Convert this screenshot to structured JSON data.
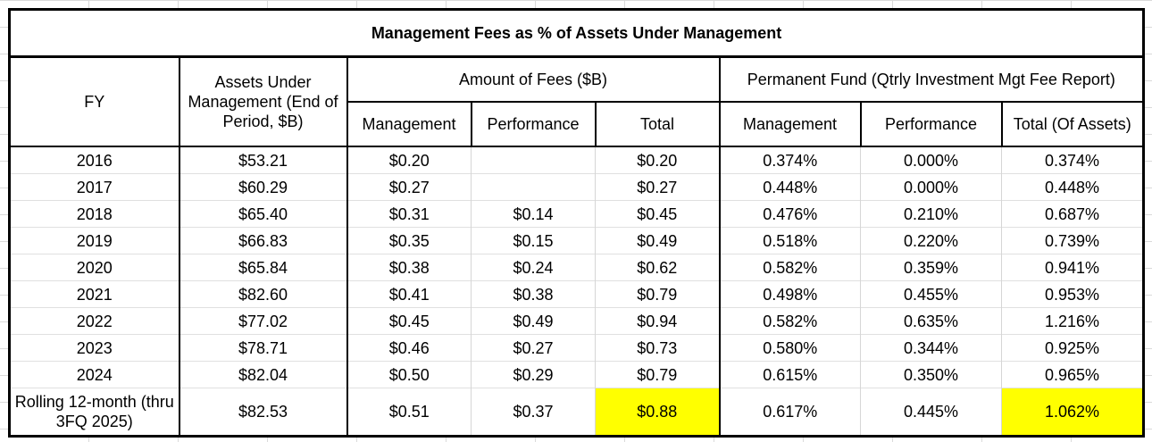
{
  "title": "Management Fees as % of Assets Under Management",
  "headers": {
    "fy": "FY",
    "aum": "Assets Under Management (End of Period, $B)",
    "fees_group": "Amount of Fees ($B)",
    "pf_group": "Permanent Fund (Qtrly Investment Mgt Fee Report)",
    "fees_mgmt": "Management",
    "fees_perf": "Performance",
    "fees_total": "Total",
    "pf_mgmt": "Management",
    "pf_perf": "Performance",
    "pf_total": "Total (Of Assets)"
  },
  "rows": [
    {
      "fy": "2016",
      "aum": "$53.21",
      "mgmt": "$0.20",
      "perf": "",
      "total": "$0.20",
      "pct_mgmt": "0.374%",
      "pct_perf": "0.000%",
      "pct_total": "0.374%"
    },
    {
      "fy": "2017",
      "aum": "$60.29",
      "mgmt": "$0.27",
      "perf": "",
      "total": "$0.27",
      "pct_mgmt": "0.448%",
      "pct_perf": "0.000%",
      "pct_total": "0.448%"
    },
    {
      "fy": "2018",
      "aum": "$65.40",
      "mgmt": "$0.31",
      "perf": "$0.14",
      "total": "$0.45",
      "pct_mgmt": "0.476%",
      "pct_perf": "0.210%",
      "pct_total": "0.687%"
    },
    {
      "fy": "2019",
      "aum": "$66.83",
      "mgmt": "$0.35",
      "perf": "$0.15",
      "total": "$0.49",
      "pct_mgmt": "0.518%",
      "pct_perf": "0.220%",
      "pct_total": "0.739%"
    },
    {
      "fy": "2020",
      "aum": "$65.84",
      "mgmt": "$0.38",
      "perf": "$0.24",
      "total": "$0.62",
      "pct_mgmt": "0.582%",
      "pct_perf": "0.359%",
      "pct_total": "0.941%"
    },
    {
      "fy": "2021",
      "aum": "$82.60",
      "mgmt": "$0.41",
      "perf": "$0.38",
      "total": "$0.79",
      "pct_mgmt": "0.498%",
      "pct_perf": "0.455%",
      "pct_total": "0.953%"
    },
    {
      "fy": "2022",
      "aum": "$77.02",
      "mgmt": "$0.45",
      "perf": "$0.49",
      "total": "$0.94",
      "pct_mgmt": "0.582%",
      "pct_perf": "0.635%",
      "pct_total": "1.216%"
    },
    {
      "fy": "2023",
      "aum": "$78.71",
      "mgmt": "$0.46",
      "perf": "$0.27",
      "total": "$0.73",
      "pct_mgmt": "0.580%",
      "pct_perf": "0.344%",
      "pct_total": "0.925%"
    },
    {
      "fy": "2024",
      "aum": "$82.04",
      "mgmt": "$0.50",
      "perf": "$0.29",
      "total": "$0.79",
      "pct_mgmt": "0.615%",
      "pct_perf": "0.350%",
      "pct_total": "0.965%"
    },
    {
      "fy": "Rolling 12-month (thru 3FQ 2025)",
      "aum": "$82.53",
      "mgmt": "$0.51",
      "perf": "$0.37",
      "total": "$0.88",
      "pct_mgmt": "0.617%",
      "pct_perf": "0.445%",
      "pct_total": "1.062%"
    }
  ],
  "highlight_color": "#ffff00"
}
